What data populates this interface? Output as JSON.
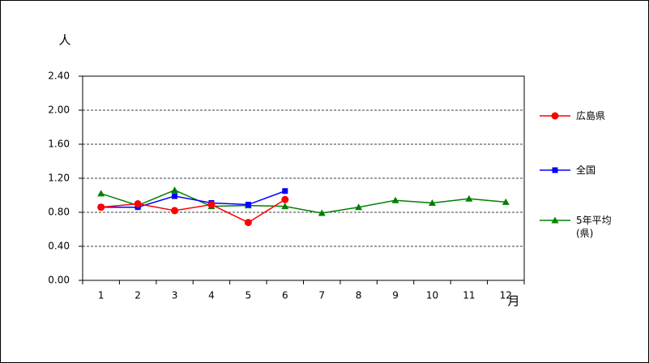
{
  "chart_data": {
    "type": "line",
    "y_label": "人",
    "x_label": "月",
    "categories": [
      "1",
      "2",
      "3",
      "4",
      "5",
      "6",
      "7",
      "8",
      "9",
      "10",
      "11",
      "12"
    ],
    "series": [
      {
        "name": "広島県",
        "color": "#ff0000",
        "marker": "circle",
        "values": [
          0.86,
          0.9,
          0.82,
          0.89,
          0.68,
          0.95,
          null,
          null,
          null,
          null,
          null,
          null
        ]
      },
      {
        "name": "全国",
        "color": "#0000ff",
        "marker": "square",
        "values": [
          0.86,
          0.86,
          0.99,
          0.91,
          0.89,
          1.05,
          null,
          null,
          null,
          null,
          null,
          null
        ]
      },
      {
        "name": "5年平均(県)",
        "color": "#008000",
        "marker": "triangle",
        "values": [
          1.02,
          0.88,
          1.06,
          0.87,
          0.88,
          0.87,
          0.79,
          0.86,
          0.94,
          0.91,
          0.96,
          0.92
        ]
      }
    ],
    "ylim": [
      0,
      2.4
    ],
    "yticks": [
      {
        "value": 0,
        "label": "0.00"
      },
      {
        "value": 0.4,
        "label": "0.40"
      },
      {
        "value": 0.8,
        "label": "0.80"
      },
      {
        "value": 1.2,
        "label": "1.20"
      },
      {
        "value": 1.6,
        "label": "1.60"
      },
      {
        "value": 2.0,
        "label": "2.00"
      },
      {
        "value": 2.4,
        "label": "2.40"
      }
    ],
    "grid": true
  }
}
